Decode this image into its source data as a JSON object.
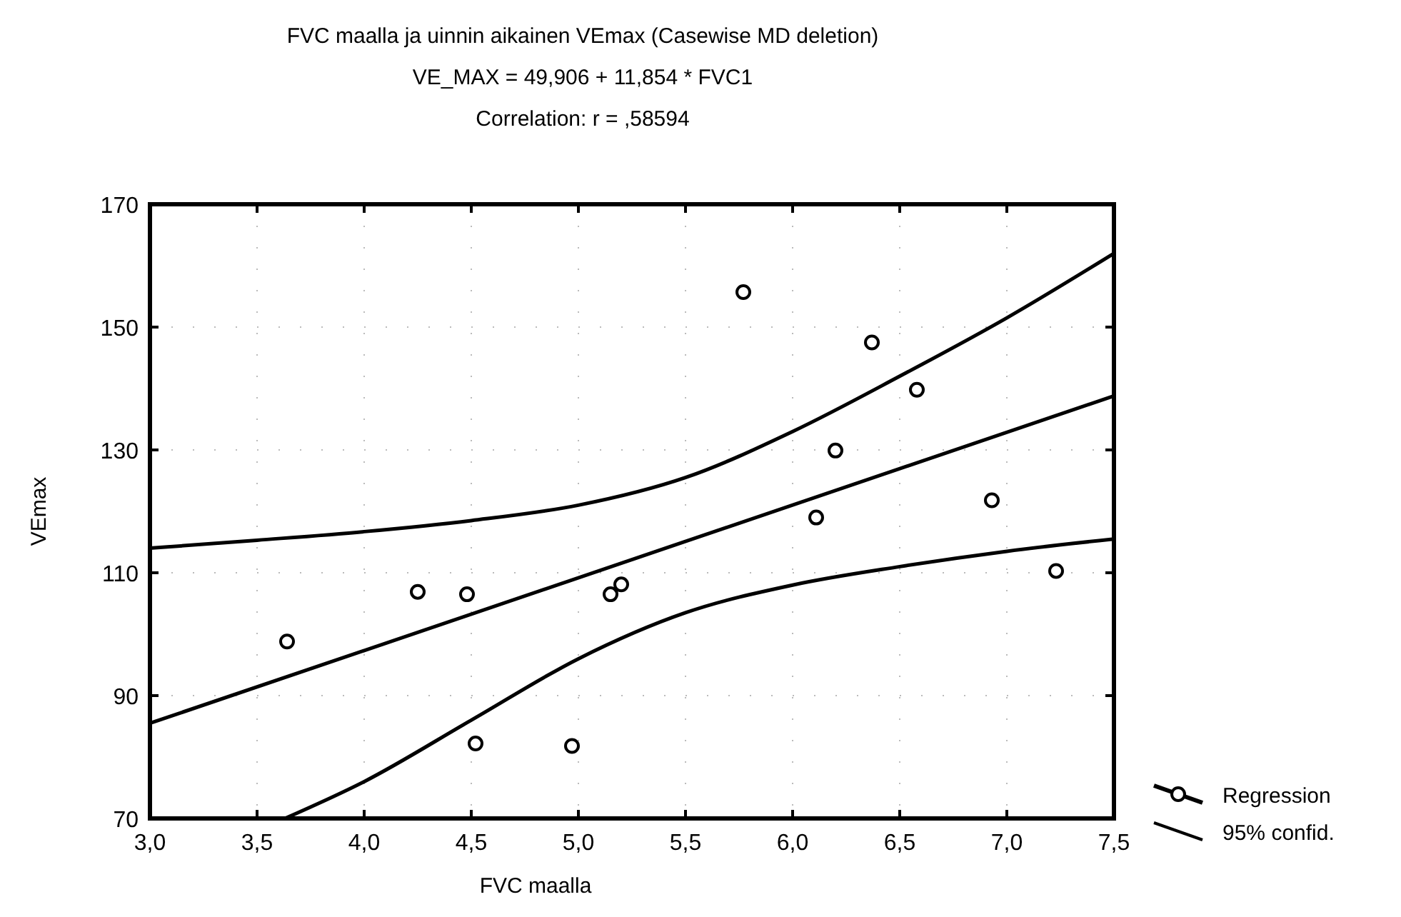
{
  "chart_data": {
    "type": "scatter",
    "title": "FVC maalla ja uinnin aikainen VEmax (Casewise MD deletion)",
    "subtitle": "VE_MAX = 49,906 + 11,854 * FVC1",
    "annotations": [
      "Correlation: r = ,58594"
    ],
    "xlabel": "FVC maalla",
    "ylabel": "VEmax",
    "xlim": [
      3.0,
      7.5
    ],
    "xticks": [
      {
        "value": 3.0,
        "label": "3,0"
      },
      {
        "value": 3.5,
        "label": "3,5"
      },
      {
        "value": 4.0,
        "label": "4,0"
      },
      {
        "value": 4.5,
        "label": "4,5"
      },
      {
        "value": 5.0,
        "label": "5,0"
      },
      {
        "value": 5.5,
        "label": "5,5"
      },
      {
        "value": 6.0,
        "label": "6,0"
      },
      {
        "value": 6.5,
        "label": "6,5"
      },
      {
        "value": 7.0,
        "label": "7,0"
      },
      {
        "value": 7.5,
        "label": "7,5"
      }
    ],
    "ylim": [
      70,
      170
    ],
    "yticks": [
      70,
      90,
      110,
      130,
      150,
      170
    ],
    "grid": true,
    "legend": "right",
    "series": [
      {
        "marker": "circle",
        "color": "#000000",
        "x": [
          3.64,
          4.25,
          4.48,
          4.52,
          4.97,
          5.15,
          5.2,
          5.77,
          6.37,
          6.58,
          6.2,
          6.11,
          6.93,
          7.23
        ],
        "values": [
          98.8,
          106.9,
          106.5,
          82.2,
          81.8,
          106.5,
          108.1,
          155.7,
          147.5,
          139.8,
          129.9,
          119.0,
          121.8,
          110.3
        ]
      },
      {
        "type": "line",
        "name": "Regression",
        "color": "#000000",
        "x": [
          3.0,
          7.5
        ],
        "values": [
          85.5,
          138.8
        ]
      },
      {
        "type": "line",
        "name": "95% confid.",
        "color": "#000000",
        "x": [
          3.0,
          3.5,
          4.0,
          4.5,
          5.0,
          5.5,
          6.0,
          6.5,
          7.0,
          7.5
        ],
        "values": [
          114,
          115.3,
          116.7,
          118.5,
          121,
          125.5,
          133,
          142,
          151.5,
          162
        ]
      },
      {
        "type": "line",
        "color": "#000000",
        "x": [
          3.63,
          4.0,
          4.5,
          5.0,
          5.5,
          6.0,
          6.5,
          7.0,
          7.5
        ],
        "values": [
          70,
          76,
          86,
          96,
          103.5,
          108,
          111,
          113.5,
          115.5
        ]
      }
    ]
  }
}
